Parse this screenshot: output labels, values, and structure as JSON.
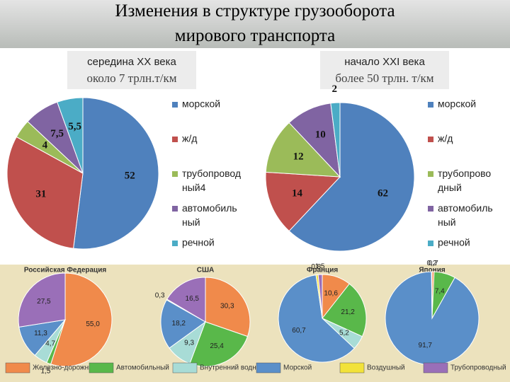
{
  "title": "Изменения в структуре грузооборота мирового транспорта",
  "bottom_legend": {
    "categories": [
      "Железно-дорожный",
      "Автомобильный",
      "Внутренний водный",
      "Морской",
      "Воздушный",
      "Трубопроводный"
    ],
    "colors": [
      "#f08a4b",
      "#59b84a",
      "#a8dcd6",
      "#5a8fc9",
      "#f2e23a",
      "#9a6fb8"
    ]
  },
  "chart_data": [
    {
      "type": "pie",
      "title": "середина XX века",
      "subtitle": "около 7 трлн.т/км",
      "categories": [
        "морской",
        "ж/д",
        "трубопровод ный4",
        "автомобиль ный",
        "речной"
      ],
      "values": [
        52,
        31,
        4,
        7.5,
        5.5
      ],
      "value_labels": [
        "52",
        "31",
        "4",
        "7,5",
        "5,5"
      ],
      "colors": [
        "#4f81bd",
        "#c0504d",
        "#9bbb59",
        "#8064a2",
        "#4bacc6"
      ]
    },
    {
      "type": "pie",
      "title": "начало XXI века",
      "subtitle": "более 50 трлн. т/км",
      "categories": [
        "морской",
        "ж/д",
        "трубопрово дный",
        "автомобиль ный",
        "речной"
      ],
      "values": [
        62,
        14,
        12,
        10,
        2
      ],
      "colors": [
        "#4f81bd",
        "#c0504d",
        "#9bbb59",
        "#8064a2",
        "#4bacc6"
      ]
    },
    {
      "type": "pie",
      "title": "Российская Федерация",
      "values": [
        55.0,
        1.5,
        4.7,
        11.3,
        null,
        27.5
      ],
      "value_labels": [
        "55,0",
        "1,5",
        "4,7",
        "11,3",
        null,
        "27,5"
      ]
    },
    {
      "type": "pie",
      "title": "США",
      "values": [
        30.3,
        25.4,
        9.3,
        18.2,
        0.3,
        16.5
      ],
      "value_labels": [
        "30,3",
        "25,4",
        "9,3",
        "18,2",
        "0,3",
        "16,5"
      ]
    },
    {
      "type": "pie",
      "title": "Франция",
      "values": [
        10.6,
        21.2,
        5.2,
        60.7,
        0.8,
        1.5
      ],
      "value_labels": [
        "10,6",
        "21,2",
        "5,2",
        "60,7",
        "0,8",
        "1,5"
      ]
    },
    {
      "type": "pie",
      "title": "Япония",
      "values": [
        0.7,
        7.4,
        null,
        91.7,
        0.2,
        null
      ],
      "value_labels": [
        "0,7",
        "7,4",
        null,
        "91,7",
        "0,2",
        null
      ]
    }
  ]
}
